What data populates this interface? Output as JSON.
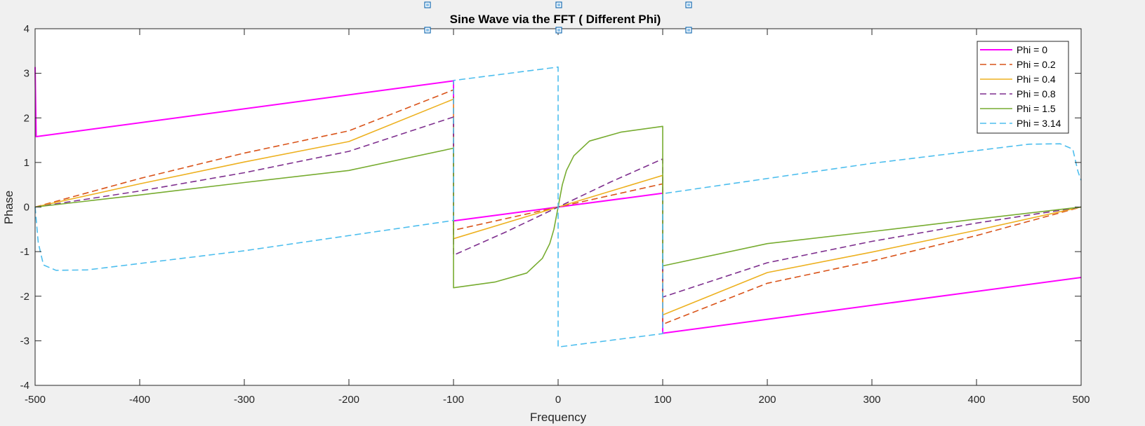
{
  "chart_data": {
    "type": "line",
    "title": "Sine Wave via the FFT ( Different Phi)",
    "xlabel": "Frequency",
    "ylabel": "Phase",
    "xlim": [
      -500,
      500
    ],
    "ylim": [
      -4,
      4
    ],
    "xticks": [
      "-500",
      "-400",
      "-300",
      "-200",
      "-100",
      "0",
      "100",
      "200",
      "300",
      "400",
      "500"
    ],
    "yticks": [
      "-4",
      "-3",
      "-2",
      "-1",
      "0",
      "1",
      "2",
      "3",
      "4"
    ],
    "grid": false,
    "legend_location": "top-right",
    "series": [
      {
        "name": "Phi = 0",
        "color": "#ff00ff",
        "dash": "solid",
        "segments": [
          [
            [
              -500,
              3.14
            ],
            [
              -499,
              1.58
            ],
            [
              -100,
              2.83
            ]
          ],
          [
            [
              -100,
              -0.31
            ],
            [
              0,
              0
            ],
            [
              100,
              0.31
            ]
          ],
          [
            [
              100,
              -2.83
            ],
            [
              500,
              -1.58
            ]
          ]
        ]
      },
      {
        "name": "Phi = 0.2",
        "color": "#d95319",
        "dash": "dashed",
        "segments": [
          [
            [
              -500,
              0
            ],
            [
              -400,
              0.64
            ],
            [
              -300,
              1.21
            ],
            [
              -200,
              1.71
            ],
            [
              -100,
              2.63
            ]
          ],
          [
            [
              -100,
              -0.52
            ],
            [
              0,
              0
            ],
            [
              100,
              0.52
            ]
          ],
          [
            [
              100,
              -2.63
            ],
            [
              200,
              -1.71
            ],
            [
              300,
              -1.21
            ],
            [
              400,
              -0.64
            ],
            [
              500,
              0
            ]
          ]
        ]
      },
      {
        "name": "Phi = 0.4",
        "color": "#edb120",
        "dash": "solid",
        "segments": [
          [
            [
              -500,
              0
            ],
            [
              -400,
              0.52
            ],
            [
              -300,
              1.01
            ],
            [
              -200,
              1.47
            ],
            [
              -100,
              2.42
            ]
          ],
          [
            [
              -100,
              -0.71
            ],
            [
              0,
              0
            ],
            [
              100,
              0.71
            ]
          ],
          [
            [
              100,
              -2.42
            ],
            [
              200,
              -1.47
            ],
            [
              300,
              -1.01
            ],
            [
              400,
              -0.52
            ],
            [
              500,
              0
            ]
          ]
        ]
      },
      {
        "name": "Phi = 0.8",
        "color": "#7e2f8e",
        "dash": "dashed",
        "segments": [
          [
            [
              -500,
              0
            ],
            [
              -400,
              0.36
            ],
            [
              -300,
              0.77
            ],
            [
              -200,
              1.25
            ],
            [
              -100,
              2.02
            ]
          ],
          [
            [
              -100,
              -1.08
            ],
            [
              -50,
              -0.56
            ],
            [
              0,
              0
            ],
            [
              50,
              0.56
            ],
            [
              100,
              1.08
            ]
          ],
          [
            [
              100,
              -2.02
            ],
            [
              200,
              -1.25
            ],
            [
              300,
              -0.77
            ],
            [
              400,
              -0.36
            ],
            [
              500,
              0
            ]
          ]
        ]
      },
      {
        "name": "Phi = 1.5",
        "color": "#77ac30",
        "dash": "solid",
        "segments": [
          [
            [
              -500,
              0
            ],
            [
              -400,
              0.27
            ],
            [
              -300,
              0.55
            ],
            [
              -200,
              0.82
            ],
            [
              -100,
              1.32
            ]
          ],
          [
            [
              -100,
              -1.81
            ],
            [
              -60,
              -1.68
            ],
            [
              -30,
              -1.48
            ],
            [
              -15,
              -1.15
            ],
            [
              -8,
              -0.82
            ],
            [
              -4,
              -0.5
            ],
            [
              0,
              0
            ],
            [
              4,
              0.5
            ],
            [
              8,
              0.82
            ],
            [
              15,
              1.15
            ],
            [
              30,
              1.48
            ],
            [
              60,
              1.68
            ],
            [
              100,
              1.81
            ]
          ],
          [
            [
              100,
              -1.32
            ],
            [
              200,
              -0.82
            ],
            [
              300,
              -0.55
            ],
            [
              400,
              -0.27
            ],
            [
              500,
              0
            ]
          ]
        ]
      },
      {
        "name": "Phi = 3.14",
        "color": "#4dbeee",
        "dash": "dashed",
        "segments": [
          [
            [
              -500,
              0
            ],
            [
              -497,
              -0.8
            ],
            [
              -492,
              -1.3
            ],
            [
              -480,
              -1.42
            ],
            [
              -450,
              -1.41
            ],
            [
              -300,
              -0.98
            ],
            [
              -100,
              -0.3
            ]
          ],
          [
            [
              -100,
              2.84
            ],
            [
              0,
              3.14
            ]
          ],
          [
            [
              0,
              -3.14
            ],
            [
              100,
              -2.84
            ]
          ],
          [
            [
              100,
              0.3
            ],
            [
              300,
              0.98
            ],
            [
              450,
              1.41
            ],
            [
              480,
              1.42
            ],
            [
              492,
              1.3
            ],
            [
              497,
              0.8
            ],
            [
              500,
              0.6
            ]
          ]
        ]
      }
    ]
  }
}
